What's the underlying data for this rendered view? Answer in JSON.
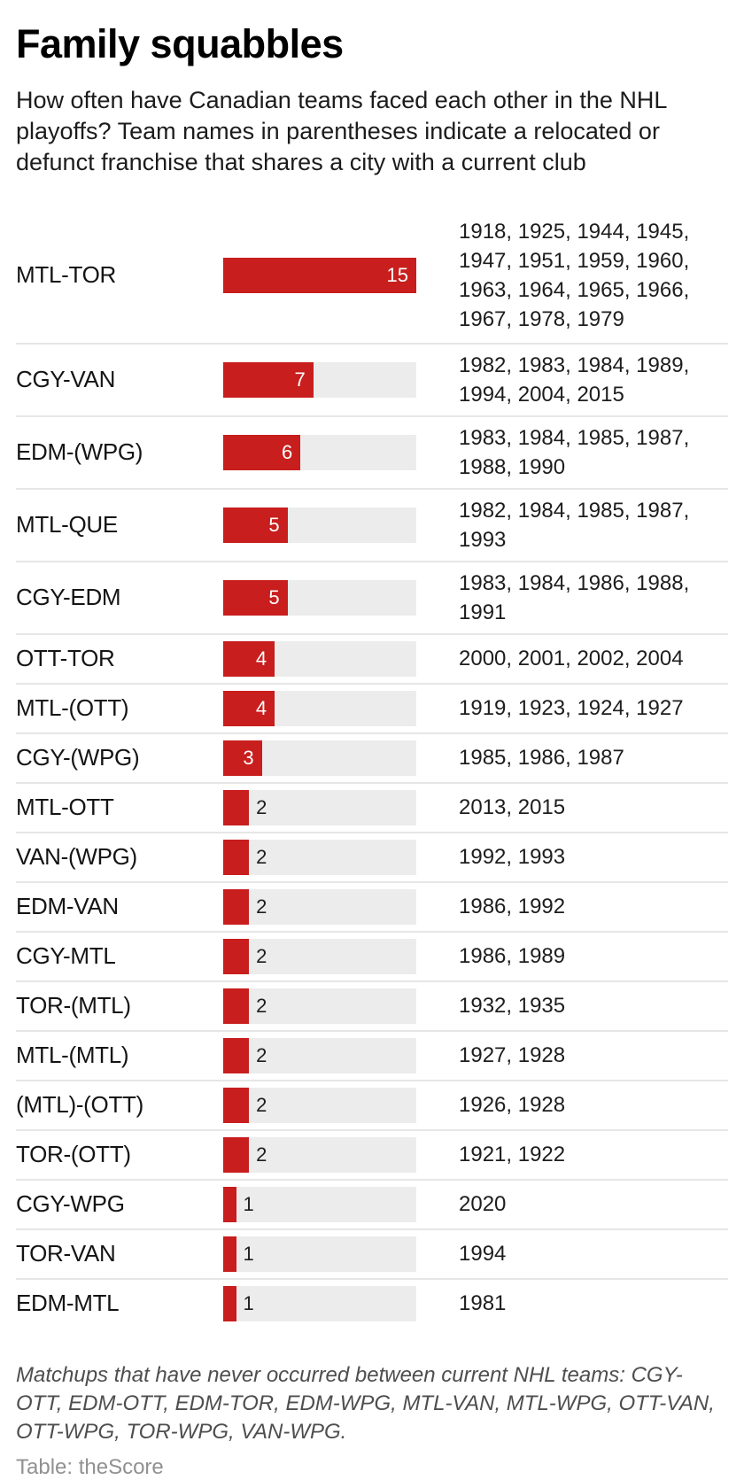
{
  "header": {
    "title": "Family squabbles",
    "subtitle": "How often have Canadian teams faced each other in the NHL playoffs? Team names in parentheses indicate a relocated or defunct franchise that shares a city with a current club"
  },
  "chart_data": {
    "type": "bar",
    "orientation": "horizontal",
    "xlabel": "",
    "ylabel": "",
    "xmax": 15,
    "grid": false,
    "bar_color": "#c81e1e",
    "track_color": "#ececec",
    "divider_color": "#e6e6e6",
    "value_label_inside_color": "#ffffff",
    "value_label_outside_color": "#1e1e1e",
    "inside_label_min": 3,
    "rows": [
      {
        "label": "MTL-TOR",
        "value": 15,
        "years": [
          1918,
          1925,
          1944,
          1945,
          1947,
          1951,
          1959,
          1960,
          1963,
          1964,
          1965,
          1966,
          1967,
          1978,
          1979
        ]
      },
      {
        "label": "CGY-VAN",
        "value": 7,
        "years": [
          1982,
          1983,
          1984,
          1989,
          1994,
          2004,
          2015
        ]
      },
      {
        "label": "EDM-(WPG)",
        "value": 6,
        "years": [
          1983,
          1984,
          1985,
          1987,
          1988,
          1990
        ]
      },
      {
        "label": "MTL-QUE",
        "value": 5,
        "years": [
          1982,
          1984,
          1985,
          1987,
          1993
        ]
      },
      {
        "label": "CGY-EDM",
        "value": 5,
        "years": [
          1983,
          1984,
          1986,
          1988,
          1991
        ]
      },
      {
        "label": "OTT-TOR",
        "value": 4,
        "years": [
          2000,
          2001,
          2002,
          2004
        ]
      },
      {
        "label": "MTL-(OTT)",
        "value": 4,
        "years": [
          1919,
          1923,
          1924,
          1927
        ]
      },
      {
        "label": "CGY-(WPG)",
        "value": 3,
        "years": [
          1985,
          1986,
          1987
        ]
      },
      {
        "label": "MTL-OTT",
        "value": 2,
        "years": [
          2013,
          2015
        ]
      },
      {
        "label": "VAN-(WPG)",
        "value": 2,
        "years": [
          1992,
          1993
        ]
      },
      {
        "label": "EDM-VAN",
        "value": 2,
        "years": [
          1986,
          1992
        ]
      },
      {
        "label": "CGY-MTL",
        "value": 2,
        "years": [
          1986,
          1989
        ]
      },
      {
        "label": "TOR-(MTL)",
        "value": 2,
        "years": [
          1932,
          1935
        ]
      },
      {
        "label": "MTL-(MTL)",
        "value": 2,
        "years": [
          1927,
          1928
        ]
      },
      {
        "label": "(MTL)-(OTT)",
        "value": 2,
        "years": [
          1926,
          1928
        ]
      },
      {
        "label": "TOR-(OTT)",
        "value": 2,
        "years": [
          1921,
          1922
        ]
      },
      {
        "label": "CGY-WPG",
        "value": 1,
        "years": [
          2020
        ]
      },
      {
        "label": "TOR-VAN",
        "value": 1,
        "years": [
          1994
        ]
      },
      {
        "label": "EDM-MTL",
        "value": 1,
        "years": [
          1981
        ]
      }
    ]
  },
  "footer": {
    "note": "Matchups that have never occurred between current NHL teams: CGY-OTT, EDM-OTT, EDM-TOR, EDM-WPG, MTL-VAN, MTL-WPG, OTT-VAN, OTT-WPG, TOR-WPG, VAN-WPG.",
    "source": "Table: theScore"
  }
}
